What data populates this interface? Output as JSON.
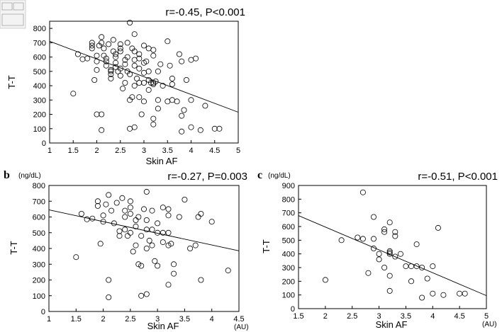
{
  "chart_data": [
    {
      "type": "scatter",
      "panel_label": "",
      "stat": "r=-0.45, P<0.001",
      "xlabel": "Skin AF",
      "ylabel": "T-T",
      "x_unit": "",
      "y_unit": "",
      "xlim": [
        1,
        5
      ],
      "ylim": [
        0,
        850
      ],
      "xticks": [
        "1",
        "1.5",
        "2",
        "2.5",
        "3",
        "3.5",
        "4",
        "4.5",
        "5"
      ],
      "xtick_values": [
        1,
        1.5,
        2,
        2.5,
        3,
        3.5,
        4,
        4.5,
        5
      ],
      "yticks": [
        "0",
        "100",
        "200",
        "300",
        "400",
        "500",
        "600",
        "700",
        "800"
      ],
      "ytick_values": [
        0,
        100,
        200,
        300,
        400,
        500,
        600,
        700,
        800
      ],
      "trend": {
        "x": [
          1,
          5
        ],
        "y": [
          710,
          215
        ]
      },
      "points": [
        [
          1.5,
          345
        ],
        [
          1.6,
          620
        ],
        [
          1.7,
          585
        ],
        [
          1.8,
          590
        ],
        [
          1.9,
          660
        ],
        [
          1.9,
          700
        ],
        [
          1.9,
          680
        ],
        [
          1.95,
          440
        ],
        [
          2.0,
          610
        ],
        [
          2.0,
          570
        ],
        [
          2.0,
          510
        ],
        [
          2.0,
          200
        ],
        [
          2.05,
          680
        ],
        [
          2.1,
          200
        ],
        [
          2.1,
          90
        ],
        [
          2.1,
          740
        ],
        [
          2.1,
          700
        ],
        [
          2.15,
          660
        ],
        [
          2.15,
          610
        ],
        [
          2.2,
          590
        ],
        [
          2.2,
          570
        ],
        [
          2.2,
          540
        ],
        [
          2.25,
          690
        ],
        [
          2.3,
          510
        ],
        [
          2.3,
          500
        ],
        [
          2.3,
          480
        ],
        [
          2.3,
          450
        ],
        [
          2.35,
          720
        ],
        [
          2.35,
          640
        ],
        [
          2.4,
          620
        ],
        [
          2.4,
          600
        ],
        [
          2.4,
          560
        ],
        [
          2.4,
          530
        ],
        [
          2.45,
          500
        ],
        [
          2.5,
          690
        ],
        [
          2.5,
          660
        ],
        [
          2.5,
          640
        ],
        [
          2.5,
          520
        ],
        [
          2.5,
          470
        ],
        [
          2.55,
          380
        ],
        [
          2.6,
          580
        ],
        [
          2.6,
          550
        ],
        [
          2.6,
          420
        ],
        [
          2.65,
          700
        ],
        [
          2.65,
          600
        ],
        [
          2.65,
          500
        ],
        [
          2.7,
          840
        ],
        [
          2.7,
          480
        ],
        [
          2.7,
          300
        ],
        [
          2.7,
          100
        ],
        [
          2.75,
          320
        ],
        [
          2.75,
          660
        ],
        [
          2.8,
          760
        ],
        [
          2.8,
          640
        ],
        [
          2.8,
          580
        ],
        [
          2.8,
          540
        ],
        [
          2.8,
          400
        ],
        [
          2.8,
          110
        ],
        [
          2.85,
          450
        ],
        [
          2.9,
          620
        ],
        [
          2.9,
          590
        ],
        [
          2.9,
          520
        ],
        [
          2.9,
          420
        ],
        [
          2.9,
          320
        ],
        [
          2.95,
          200
        ],
        [
          3.0,
          680
        ],
        [
          3.0,
          560
        ],
        [
          3.0,
          490
        ],
        [
          3.0,
          420
        ],
        [
          3.0,
          290
        ],
        [
          3.05,
          570
        ],
        [
          3.1,
          660
        ],
        [
          3.1,
          500
        ],
        [
          3.1,
          440
        ],
        [
          3.1,
          370
        ],
        [
          3.15,
          420
        ],
        [
          3.2,
          650
        ],
        [
          3.2,
          610
        ],
        [
          3.2,
          420
        ],
        [
          3.2,
          410
        ],
        [
          3.2,
          170
        ],
        [
          3.2,
          130
        ],
        [
          3.25,
          430
        ],
        [
          3.3,
          500
        ],
        [
          3.3,
          300
        ],
        [
          3.3,
          240
        ],
        [
          3.35,
          550
        ],
        [
          3.4,
          400
        ],
        [
          3.5,
          710
        ],
        [
          3.5,
          290
        ],
        [
          3.55,
          540
        ],
        [
          3.6,
          450
        ],
        [
          3.6,
          410
        ],
        [
          3.6,
          300
        ],
        [
          3.7,
          290
        ],
        [
          3.75,
          620
        ],
        [
          3.8,
          570
        ],
        [
          3.8,
          190
        ],
        [
          3.8,
          80
        ],
        [
          3.85,
          230
        ],
        [
          3.9,
          440
        ],
        [
          4.0,
          580
        ],
        [
          4.0,
          300
        ],
        [
          4.0,
          110
        ],
        [
          4.1,
          590
        ],
        [
          4.2,
          90
        ],
        [
          4.3,
          260
        ],
        [
          4.5,
          100
        ],
        [
          4.6,
          100
        ]
      ]
    },
    {
      "type": "scatter",
      "panel_label": "b",
      "stat": "r=-0.27, P=0.003",
      "xlabel": "Skin AF",
      "ylabel": "T-T",
      "x_unit": "(AU)",
      "y_unit": "(ng/dL)",
      "xlim": [
        1,
        4.5
      ],
      "ylim": [
        0,
        800
      ],
      "xticks": [
        "1",
        "1.5",
        "2",
        "2.5",
        "3",
        "3.5",
        "4",
        "4.5"
      ],
      "xtick_values": [
        1,
        1.5,
        2,
        2.5,
        3,
        3.5,
        4,
        4.5
      ],
      "yticks": [
        "0",
        "100",
        "200",
        "300",
        "400",
        "500",
        "600",
        "700",
        "800"
      ],
      "ytick_values": [
        0,
        100,
        200,
        300,
        400,
        500,
        600,
        700,
        800
      ],
      "trend": {
        "x": [
          1,
          4.5
        ],
        "y": [
          645,
          385
        ]
      },
      "points": [
        [
          1.5,
          345
        ],
        [
          1.6,
          620
        ],
        [
          1.7,
          585
        ],
        [
          1.8,
          590
        ],
        [
          1.9,
          700
        ],
        [
          1.9,
          670
        ],
        [
          1.95,
          430
        ],
        [
          2.0,
          610
        ],
        [
          2.0,
          570
        ],
        [
          2.05,
          680
        ],
        [
          2.1,
          740
        ],
        [
          2.1,
          200
        ],
        [
          2.1,
          90
        ],
        [
          2.15,
          640
        ],
        [
          2.2,
          560
        ],
        [
          2.25,
          690
        ],
        [
          2.3,
          510
        ],
        [
          2.3,
          480
        ],
        [
          2.35,
          720
        ],
        [
          2.4,
          640
        ],
        [
          2.4,
          600
        ],
        [
          2.4,
          520
        ],
        [
          2.45,
          480
        ],
        [
          2.5,
          700
        ],
        [
          2.5,
          660
        ],
        [
          2.5,
          620
        ],
        [
          2.5,
          500
        ],
        [
          2.55,
          380
        ],
        [
          2.6,
          580
        ],
        [
          2.6,
          540
        ],
        [
          2.6,
          420
        ],
        [
          2.65,
          600
        ],
        [
          2.65,
          300
        ],
        [
          2.7,
          480
        ],
        [
          2.7,
          290
        ],
        [
          2.7,
          100
        ],
        [
          2.75,
          650
        ],
        [
          2.8,
          760
        ],
        [
          2.8,
          580
        ],
        [
          2.8,
          520
        ],
        [
          2.8,
          400
        ],
        [
          2.8,
          110
        ],
        [
          2.85,
          450
        ],
        [
          2.9,
          640
        ],
        [
          2.9,
          520
        ],
        [
          2.9,
          420
        ],
        [
          2.95,
          320
        ],
        [
          3.0,
          560
        ],
        [
          3.0,
          500
        ],
        [
          3.0,
          290
        ],
        [
          3.1,
          660
        ],
        [
          3.1,
          500
        ],
        [
          3.1,
          440
        ],
        [
          3.2,
          650
        ],
        [
          3.2,
          610
        ],
        [
          3.2,
          500
        ],
        [
          3.2,
          420
        ],
        [
          3.2,
          170
        ],
        [
          3.25,
          430
        ],
        [
          3.3,
          300
        ],
        [
          3.3,
          240
        ],
        [
          3.4,
          600
        ],
        [
          3.5,
          710
        ],
        [
          3.6,
          400
        ],
        [
          3.7,
          420
        ],
        [
          3.75,
          600
        ],
        [
          3.8,
          620
        ],
        [
          3.8,
          200
        ],
        [
          4.0,
          570
        ],
        [
          4.3,
          260
        ]
      ]
    },
    {
      "type": "scatter",
      "panel_label": "c",
      "stat": "r=-0.51, P<0.001",
      "xlabel": "Skin AF",
      "ylabel": "T-T",
      "x_unit": "(AU)",
      "y_unit": "(ng/dL)",
      "xlim": [
        1.5,
        5
      ],
      "ylim": [
        0,
        900
      ],
      "xticks": [
        "1.5",
        "2",
        "2.5",
        "3",
        "3.5",
        "4",
        "4.5",
        "5"
      ],
      "xtick_values": [
        1.5,
        2,
        2.5,
        3,
        3.5,
        4,
        4.5,
        5
      ],
      "yticks": [
        "0",
        "100",
        "200",
        "300",
        "400",
        "500",
        "600",
        "700",
        "800",
        "900"
      ],
      "ytick_values": [
        0,
        100,
        200,
        300,
        400,
        500,
        600,
        700,
        800,
        900
      ],
      "trend": {
        "x": [
          1.5,
          5
        ],
        "y": [
          680,
          95
        ]
      },
      "points": [
        [
          2.0,
          210
        ],
        [
          2.3,
          500
        ],
        [
          2.6,
          520
        ],
        [
          2.7,
          510
        ],
        [
          2.7,
          850
        ],
        [
          2.8,
          260
        ],
        [
          2.9,
          670
        ],
        [
          2.9,
          510
        ],
        [
          2.9,
          440
        ],
        [
          3.0,
          400
        ],
        [
          3.0,
          360
        ],
        [
          3.1,
          580
        ],
        [
          3.1,
          300
        ],
        [
          3.1,
          560
        ],
        [
          3.2,
          630
        ],
        [
          3.2,
          420
        ],
        [
          3.2,
          410
        ],
        [
          3.2,
          400
        ],
        [
          3.2,
          130
        ],
        [
          3.2,
          240
        ],
        [
          3.3,
          560
        ],
        [
          3.3,
          530
        ],
        [
          3.3,
          380
        ],
        [
          3.4,
          400
        ],
        [
          3.5,
          310
        ],
        [
          3.6,
          200
        ],
        [
          3.6,
          310
        ],
        [
          3.7,
          470
        ],
        [
          3.7,
          310
        ],
        [
          3.8,
          80
        ],
        [
          3.8,
          300
        ],
        [
          3.9,
          220
        ],
        [
          4.0,
          310
        ],
        [
          4.0,
          110
        ],
        [
          4.1,
          590
        ],
        [
          4.2,
          100
        ],
        [
          4.5,
          110
        ],
        [
          4.6,
          110
        ]
      ]
    }
  ]
}
